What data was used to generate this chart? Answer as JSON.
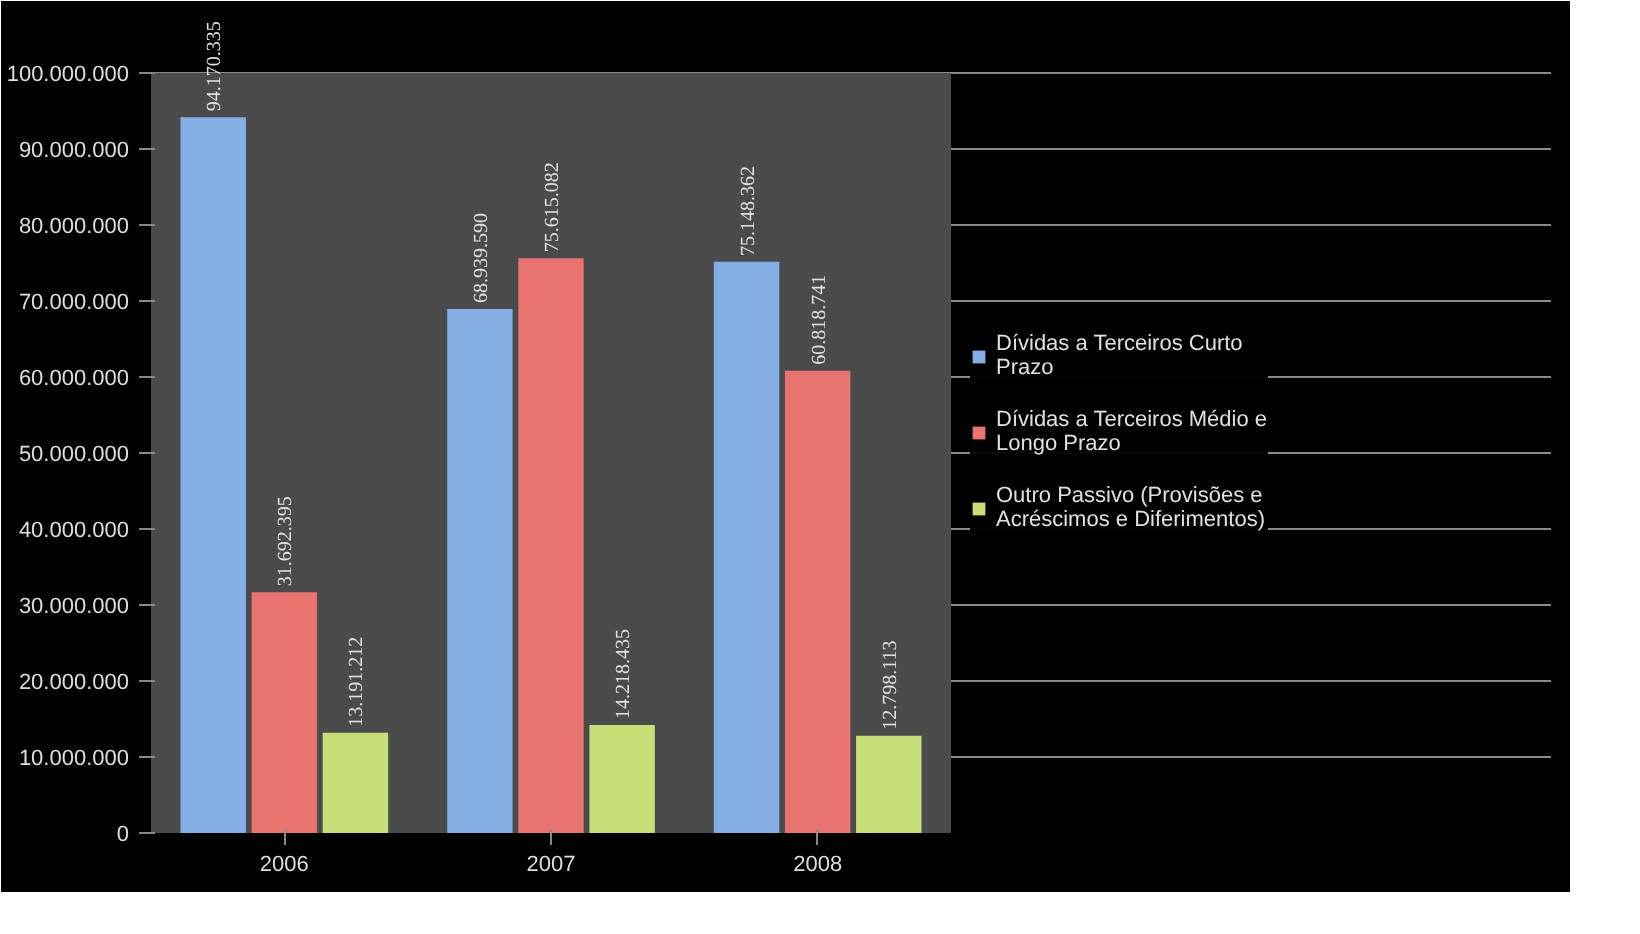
{
  "chart_data": {
    "type": "bar",
    "categories": [
      "2006",
      "2007",
      "2008"
    ],
    "series": [
      {
        "name": "Dívidas a Terceiros Curto Prazo",
        "color": "#86aee6",
        "values": [
          94170335,
          68939590,
          75148362
        ],
        "value_labels": [
          "94.170.335",
          "68.939.590",
          "75.148.362"
        ]
      },
      {
        "name": "Dívidas a Terceiros Médio e Longo Prazo",
        "color": "#e8736f",
        "values": [
          31692395,
          75615082,
          60818741
        ],
        "value_labels": [
          "31.692.395",
          "75.615.082",
          "60.818.741"
        ]
      },
      {
        "name": "Outro Passivo (Provisões e Acréscimos e Diferimentos)",
        "color": "#c6dd78",
        "values": [
          13191212,
          14218435,
          12798113
        ],
        "value_labels": [
          "13.191.212",
          "14.218.435",
          "12.798.113"
        ]
      }
    ],
    "ylim": [
      0,
      100000000
    ],
    "yticks": [
      {
        "value": 0,
        "label": "0"
      },
      {
        "value": 10000000,
        "label": "10.000.000"
      },
      {
        "value": 20000000,
        "label": "20.000.000"
      },
      {
        "value": 30000000,
        "label": "30.000.000"
      },
      {
        "value": 40000000,
        "label": "40.000.000"
      },
      {
        "value": 50000000,
        "label": "50.000.000"
      },
      {
        "value": 60000000,
        "label": "60.000.000"
      },
      {
        "value": 70000000,
        "label": "70.000.000"
      },
      {
        "value": 80000000,
        "label": "80.000.000"
      },
      {
        "value": 90000000,
        "label": "90.000.000"
      },
      {
        "value": 100000000,
        "label": "100.000.000"
      }
    ],
    "grid": "y",
    "legend": "right"
  }
}
